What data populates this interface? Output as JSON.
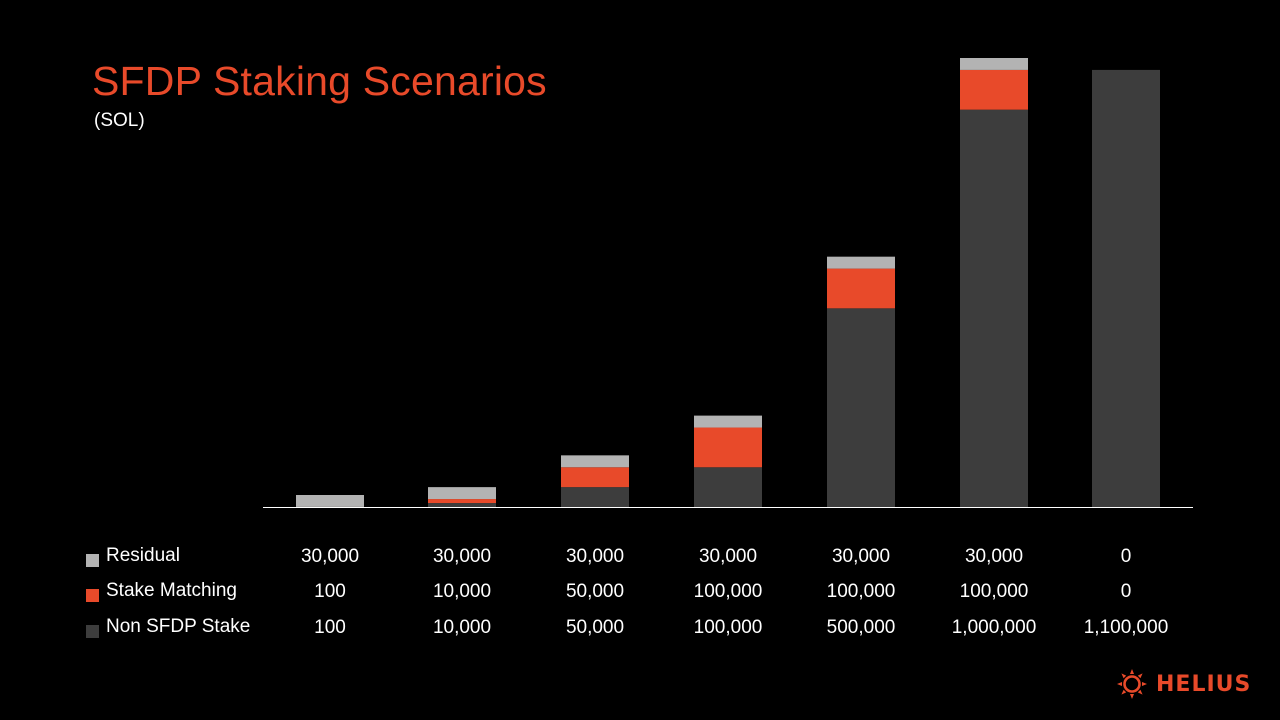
{
  "title": "SFDP Staking Scenarios",
  "subtitle": "(SOL)",
  "colors": {
    "residual": "#b3b3b3",
    "stake_matching": "#e84a2a",
    "non_sfdp": "#3d3d3d",
    "axis": "#ffffff",
    "brand": "#e84a2a"
  },
  "chart_data": {
    "type": "bar",
    "stacked": true,
    "categories": [
      "",
      "",
      "",
      "",
      "",
      "",
      ""
    ],
    "series": [
      {
        "name": "Non SFDP Stake",
        "values": [
          100,
          10000,
          50000,
          100000,
          500000,
          1000000,
          1100000
        ]
      },
      {
        "name": "Stake Matching",
        "values": [
          100,
          10000,
          50000,
          100000,
          100000,
          100000,
          0
        ]
      },
      {
        "name": "Residual",
        "values": [
          30000,
          30000,
          30000,
          30000,
          30000,
          30000,
          0
        ]
      }
    ],
    "ylim": [
      0,
      1130000
    ],
    "grid": false,
    "legend": "bottom-left table"
  },
  "table": {
    "rows": [
      {
        "label": "Residual",
        "color_key": "residual",
        "values": [
          "30,000",
          "30,000",
          "30,000",
          "30,000",
          "30,000",
          "30,000",
          "0"
        ]
      },
      {
        "label": "Stake Matching",
        "color_key": "stake_matching",
        "values": [
          "100",
          "10,000",
          "50,000",
          "100,000",
          "100,000",
          "100,000",
          "0"
        ]
      },
      {
        "label": "Non SFDP Stake",
        "color_key": "non_sfdp",
        "values": [
          "100",
          "10,000",
          "50,000",
          "100,000",
          "500,000",
          "1,000,000",
          "1,100,000"
        ]
      }
    ]
  },
  "logo": {
    "text": "HELIUS",
    "icon": "helius-sun-icon"
  }
}
